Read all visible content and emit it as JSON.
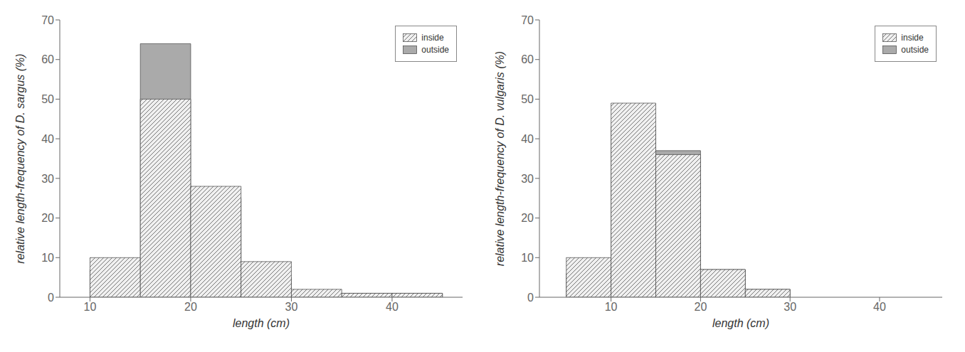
{
  "chart_data": [
    {
      "type": "histogram",
      "xlabel": "length (cm)",
      "ylabel": "relative length-frequency of D. sargus (%)",
      "bins": [
        10,
        15,
        20,
        25,
        30,
        35,
        40,
        45
      ],
      "series": [
        {
          "name": "inside",
          "color": "#f0f0f0",
          "values": [
            10,
            50,
            28,
            9,
            2,
            1,
            1
          ]
        },
        {
          "name": "outside",
          "color": "#aaaaaa",
          "values": [
            7,
            64,
            25,
            5,
            1,
            1,
            1
          ]
        }
      ],
      "xlim": [
        7,
        47
      ],
      "xticks": [
        10,
        20,
        30,
        40
      ],
      "ylim": [
        0,
        70
      ],
      "yticks": [
        0,
        10,
        20,
        30,
        40,
        50,
        60,
        70
      ],
      "legend": "upper right"
    },
    {
      "type": "histogram",
      "xlabel": "length (cm)",
      "ylabel": "relative length-frequency of D. vulgaris (%)",
      "bins": [
        5,
        10,
        15,
        20,
        25,
        30
      ],
      "series": [
        {
          "name": "inside",
          "color": "#f0f0f0",
          "values": [
            10,
            49,
            36,
            7,
            2
          ]
        },
        {
          "name": "outside",
          "color": "#aaaaaa",
          "values": [
            6,
            43,
            37,
            7,
            2
          ]
        }
      ],
      "xlim": [
        2,
        47
      ],
      "xticks": [
        10,
        20,
        30,
        40
      ],
      "ylim": [
        0,
        70
      ],
      "yticks": [
        0,
        10,
        20,
        30,
        40,
        50,
        60,
        70
      ],
      "legend": "upper right"
    }
  ]
}
